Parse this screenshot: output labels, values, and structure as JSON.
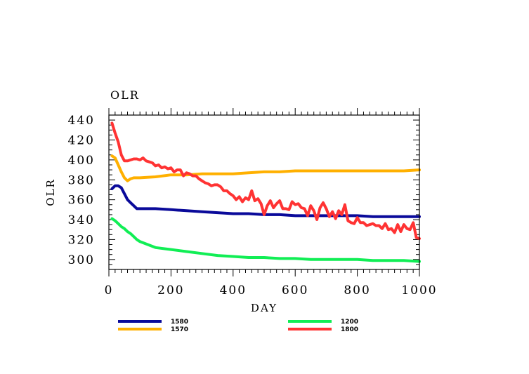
{
  "chart_data": {
    "type": "line",
    "title": "OLR",
    "xlabel": "DAY",
    "ylabel": "OLR",
    "xlim": [
      0,
      1000
    ],
    "ylim": [
      290,
      445
    ],
    "xticks": [
      "0",
      "200",
      "400",
      "600",
      "800",
      "1000"
    ],
    "yticks": [
      "300",
      "320",
      "340",
      "360",
      "380",
      "400",
      "420",
      "440"
    ],
    "legend_position": "bottom",
    "series": [
      {
        "name": "1580",
        "color": "#0a0a9a",
        "x": [
          10,
          20,
          30,
          40,
          50,
          60,
          70,
          80,
          90,
          100,
          150,
          200,
          250,
          300,
          350,
          400,
          450,
          500,
          550,
          600,
          650,
          700,
          750,
          800,
          850,
          900,
          950,
          1000
        ],
        "y": [
          371,
          374,
          374,
          372,
          366,
          360,
          357,
          354,
          351,
          351,
          351,
          350,
          349,
          348,
          347,
          346,
          346,
          345,
          345,
          344,
          344,
          344,
          344,
          344,
          343,
          343,
          343,
          343
        ]
      },
      {
        "name": "1570",
        "color": "#ffb000",
        "x": [
          10,
          20,
          30,
          40,
          50,
          60,
          70,
          80,
          90,
          100,
          150,
          200,
          250,
          300,
          350,
          400,
          450,
          500,
          550,
          600,
          650,
          700,
          750,
          800,
          850,
          900,
          950,
          1000
        ],
        "y": [
          404,
          402,
          395,
          388,
          382,
          379,
          381,
          382,
          382,
          382,
          383,
          385,
          385,
          386,
          386,
          386,
          387,
          388,
          388,
          389,
          389,
          389,
          389,
          389,
          389,
          389,
          389,
          390
        ]
      },
      {
        "name": "1200",
        "color": "#11ee55",
        "x": [
          10,
          20,
          30,
          40,
          50,
          60,
          70,
          80,
          90,
          100,
          150,
          200,
          250,
          300,
          350,
          400,
          450,
          500,
          550,
          600,
          650,
          700,
          750,
          800,
          850,
          900,
          950,
          1000
        ],
        "y": [
          341,
          339,
          336,
          333,
          331,
          328,
          326,
          323,
          320,
          318,
          312,
          310,
          308,
          306,
          304,
          303,
          302,
          302,
          301,
          301,
          300,
          300,
          300,
          300,
          299,
          299,
          299,
          298
        ]
      },
      {
        "name": "1800",
        "color": "#ff3333",
        "x": [
          10,
          20,
          30,
          40,
          50,
          60,
          70,
          80,
          90,
          100,
          110,
          120,
          130,
          140,
          150,
          160,
          170,
          180,
          190,
          200,
          210,
          220,
          230,
          240,
          250,
          260,
          270,
          280,
          290,
          300,
          310,
          320,
          330,
          340,
          350,
          360,
          370,
          380,
          390,
          400,
          410,
          420,
          430,
          440,
          450,
          460,
          470,
          480,
          490,
          500,
          510,
          520,
          530,
          540,
          550,
          560,
          570,
          580,
          590,
          600,
          610,
          620,
          630,
          640,
          650,
          660,
          670,
          680,
          690,
          700,
          710,
          720,
          730,
          740,
          750,
          760,
          770,
          780,
          790,
          800,
          810,
          820,
          830,
          840,
          850,
          860,
          870,
          880,
          890,
          900,
          910,
          920,
          930,
          940,
          950,
          960,
          970,
          980,
          990,
          1000
        ],
        "y": [
          437,
          427,
          418,
          405,
          399,
          399,
          400,
          401,
          401,
          400,
          402,
          399,
          398,
          397,
          394,
          395,
          392,
          393,
          391,
          392,
          388,
          390,
          390,
          384,
          387,
          386,
          384,
          384,
          381,
          379,
          377,
          376,
          374,
          375,
          375,
          373,
          369,
          369,
          366,
          364,
          360,
          363,
          358,
          362,
          360,
          369,
          359,
          361,
          356,
          345,
          354,
          359,
          352,
          356,
          359,
          351,
          351,
          350,
          358,
          355,
          356,
          352,
          351,
          344,
          354,
          349,
          340,
          352,
          357,
          351,
          343,
          348,
          341,
          349,
          345,
          355,
          339,
          337,
          336,
          342,
          337,
          337,
          334,
          335,
          336,
          334,
          334,
          331,
          336,
          330,
          331,
          327,
          335,
          328,
          335,
          331,
          330,
          337,
          322,
          321
        ]
      }
    ]
  }
}
